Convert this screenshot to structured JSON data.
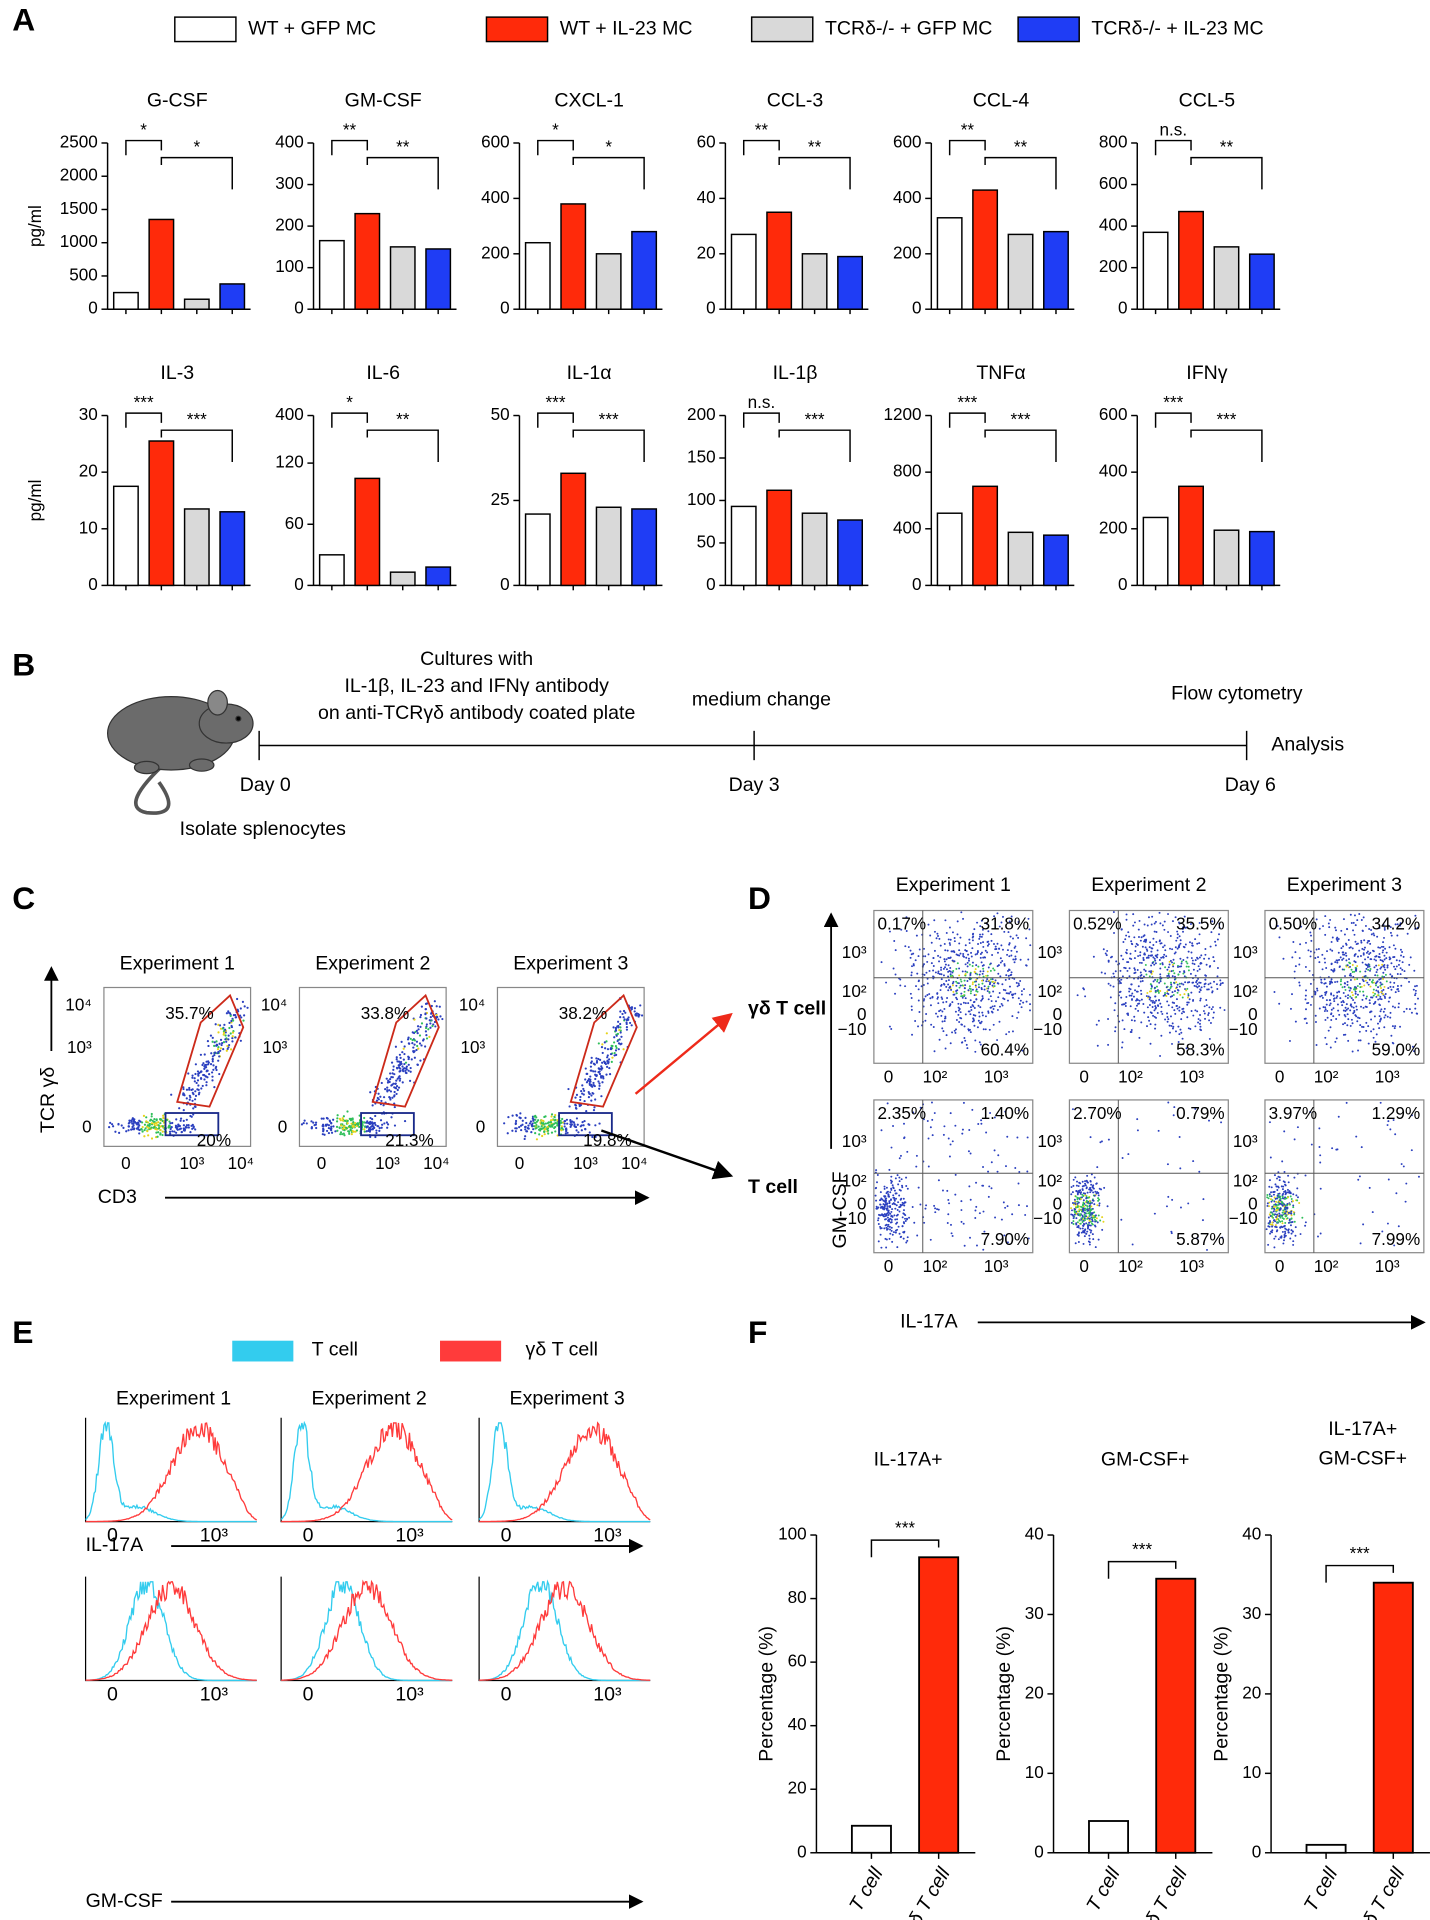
{
  "panel_a": {
    "letter": "A",
    "legend": [
      {
        "name": "WT + GFP MC",
        "color": "#ffffff"
      },
      {
        "name": "WT + IL-23 MC",
        "color": "#ff2a0a"
      },
      {
        "name": "TCRδ-/- + GFP MC",
        "color": "#d9d9d9"
      },
      {
        "name": "TCRδ-/- + IL-23 MC",
        "color": "#1f3df5"
      }
    ],
    "ylabel": "pg/ml",
    "charts": [
      {
        "type": "bar",
        "title": "G-CSF",
        "values": [
          250,
          1350,
          150,
          380
        ],
        "ylim": [
          0,
          2500
        ],
        "yticks": [
          0,
          500,
          1000,
          1500,
          2000,
          2500
        ],
        "significance": [
          "*",
          "*"
        ]
      },
      {
        "type": "bar",
        "title": "GM-CSF",
        "values": [
          165,
          230,
          150,
          145
        ],
        "ylim": [
          0,
          400
        ],
        "yticks": [
          0,
          100,
          200,
          300,
          400
        ],
        "significance": [
          "**",
          "**"
        ]
      },
      {
        "type": "bar",
        "title": "CXCL-1",
        "values": [
          240,
          380,
          200,
          280
        ],
        "ylim": [
          0,
          600
        ],
        "yticks": [
          0,
          200,
          400,
          600
        ],
        "significance": [
          "*",
          "*"
        ]
      },
      {
        "type": "bar",
        "title": "CCL-3",
        "values": [
          27,
          35,
          20,
          19
        ],
        "ylim": [
          0,
          60
        ],
        "yticks": [
          0,
          20,
          40,
          60
        ],
        "significance": [
          "**",
          "**"
        ]
      },
      {
        "type": "bar",
        "title": "CCL-4",
        "values": [
          330,
          430,
          270,
          280
        ],
        "ylim": [
          0,
          600
        ],
        "yticks": [
          0,
          200,
          400,
          600
        ],
        "significance": [
          "**",
          "**"
        ]
      },
      {
        "type": "bar",
        "title": "CCL-5",
        "values": [
          370,
          470,
          300,
          265
        ],
        "ylim": [
          0,
          800
        ],
        "yticks": [
          0,
          200,
          400,
          600,
          800
        ],
        "significance": [
          "n.s.",
          "**"
        ]
      },
      {
        "type": "bar",
        "title": "IL-3",
        "values": [
          17.5,
          25.5,
          13.5,
          13
        ],
        "ylim": [
          0,
          30
        ],
        "yticks": [
          0,
          10,
          20,
          30
        ],
        "significance": [
          "***",
          "***"
        ]
      },
      {
        "type": "bar",
        "title": "IL-6",
        "values": [
          30,
          105,
          13,
          18
        ],
        "ylim": [
          0,
          400
        ],
        "ybreak": [
          130,
          400
        ],
        "yticks": [
          0,
          60,
          120,
          400
        ],
        "significance": [
          "*",
          "**"
        ]
      },
      {
        "type": "bar",
        "title": "IL-1α",
        "values": [
          21,
          33,
          23,
          22.5
        ],
        "ylim": [
          0,
          50
        ],
        "yticks": [
          0,
          25,
          50
        ],
        "significance": [
          "***",
          "***"
        ]
      },
      {
        "type": "bar",
        "title": "IL-1β",
        "values": [
          93,
          112,
          85,
          77
        ],
        "ylim": [
          0,
          200
        ],
        "yticks": [
          0,
          50,
          100,
          150,
          200
        ],
        "significance": [
          "n.s.",
          "***"
        ]
      },
      {
        "type": "bar",
        "title": "TNFα",
        "values": [
          510,
          700,
          375,
          355
        ],
        "ylim": [
          0,
          1200
        ],
        "yticks": [
          0,
          400,
          800,
          1200
        ],
        "significance": [
          "***",
          "***"
        ]
      },
      {
        "type": "bar",
        "title": "IFNγ",
        "values": [
          240,
          350,
          195,
          190
        ],
        "ylim": [
          0,
          600
        ],
        "yticks": [
          0,
          200,
          400,
          600
        ],
        "significance": [
          "***",
          "***"
        ]
      }
    ]
  },
  "panel_b": {
    "letter": "B",
    "culture_lines": [
      "Cultures with",
      "IL-1β, IL-23 and IFNγ antibody",
      "on anti-TCRγδ antibody coated plate"
    ],
    "medium": "medium change",
    "flow": "Flow cytometry",
    "analysis": "Analysis",
    "days": [
      "Day 0",
      "Day 3",
      "Day 6"
    ],
    "isolate": "Isolate splenocytes"
  },
  "panel_c": {
    "letter": "C",
    "titles": [
      "Experiment 1",
      "Experiment 2",
      "Experiment 3"
    ],
    "gamma_delta_pct": [
      "35.7%",
      "33.8%",
      "38.2%"
    ],
    "t_cell_pct": [
      "20%",
      "21.3%",
      "19.8%"
    ],
    "yticks": [
      "10⁴",
      "10³",
      "0"
    ],
    "xticks": [
      "0",
      "10³",
      "10⁴"
    ],
    "ylabel": "TCR γδ",
    "xlabel": "CD3",
    "gamma_delta_label": "γδ T cell",
    "t_cell_label": "T cell"
  },
  "panel_d": {
    "letter": "D",
    "titles": [
      "Experiment 1",
      "Experiment 2",
      "Experiment 3"
    ],
    "rows": [
      [
        [
          "0.17%",
          "31.8%",
          "60.4%"
        ],
        [
          "0.52%",
          "35.5%",
          "58.3%"
        ],
        [
          "0.50%",
          "34.2%",
          "59.0%"
        ]
      ],
      [
        [
          "2.35%",
          "1.40%",
          "7.90%"
        ],
        [
          "2.70%",
          "0.79%",
          "5.87%"
        ],
        [
          "3.97%",
          "1.29%",
          "7.99%"
        ]
      ]
    ],
    "yticks": [
      "10³",
      "10²",
      "0",
      "−10"
    ],
    "xticks": [
      "0",
      "10²",
      "10³"
    ],
    "ylabel": "GM-CSF",
    "xlabel": "IL-17A"
  },
  "panel_e": {
    "letter": "E",
    "legend": [
      {
        "name": "T cell",
        "color": "#33ccee"
      },
      {
        "name": "γδ T cell",
        "color": "#ff3b3b"
      }
    ],
    "titles": [
      "Experiment 1",
      "Experiment 2",
      "Experiment 3"
    ],
    "xlabels": [
      "IL-17A",
      "GM-CSF"
    ],
    "xticks": [
      "0",
      "10³"
    ]
  },
  "panel_f": {
    "letter": "F",
    "ylabel": "Percentage (%)",
    "categories": [
      "T cell",
      "γδ T cell"
    ],
    "colors": [
      "#ffffff",
      "#ff2a0a"
    ],
    "charts": [
      {
        "type": "bar",
        "title": [
          "IL-17A+"
        ],
        "values": [
          8.5,
          93
        ],
        "ylim": [
          0,
          100
        ],
        "yticks": [
          0,
          20,
          40,
          60,
          80,
          100
        ],
        "significance": "***"
      },
      {
        "type": "bar",
        "title": [
          "GM-CSF+"
        ],
        "values": [
          4,
          34.5
        ],
        "ylim": [
          0,
          40
        ],
        "yticks": [
          0,
          10,
          20,
          30,
          40
        ],
        "significance": "***"
      },
      {
        "type": "bar",
        "title": [
          "IL-17A+",
          "GM-CSF+"
        ],
        "values": [
          1,
          34
        ],
        "ylim": [
          0,
          40
        ],
        "yticks": [
          0,
          10,
          20,
          30,
          40
        ],
        "significance": "***"
      }
    ]
  }
}
